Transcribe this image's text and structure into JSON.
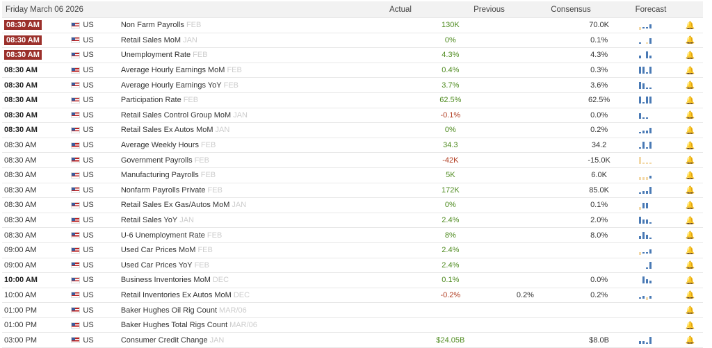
{
  "header": {
    "date": "Friday March 06 2026",
    "actual": "Actual",
    "previous": "Previous",
    "consensus": "Consensus",
    "forecast": "Forecast"
  },
  "colors": {
    "badge": "#9b302b",
    "positive": "#4d8a1e",
    "negative": "#b03a1e",
    "spark_up": "#4a7ab5",
    "spark_down": "#f3d9a8"
  },
  "rows": [
    {
      "time": "08:30 AM",
      "style": "badge",
      "country": "US",
      "event": "Non Farm Payrolls",
      "period": "FEB",
      "actual": "",
      "previous": "130K",
      "sign": "pos",
      "consensus": "",
      "forecast": "70.0K",
      "spark": [
        -2,
        1,
        1,
        3
      ]
    },
    {
      "time": "08:30 AM",
      "style": "badge",
      "country": "US",
      "event": "Retail Sales MoM",
      "period": "JAN",
      "actual": "",
      "previous": "0%",
      "sign": "pos",
      "consensus": "",
      "forecast": "0.1%",
      "spark": [
        1,
        0,
        -1,
        4
      ]
    },
    {
      "time": "08:30 AM",
      "style": "badge",
      "country": "US",
      "event": "Unemployment Rate",
      "period": "FEB",
      "actual": "",
      "previous": "4.3%",
      "sign": "pos",
      "consensus": "",
      "forecast": "4.3%",
      "spark": [
        2,
        0,
        5,
        2
      ]
    },
    {
      "time": "08:30 AM",
      "style": "bold",
      "country": "US",
      "event": "Average Hourly Earnings MoM",
      "period": "FEB",
      "actual": "",
      "previous": "0.4%",
      "sign": "pos",
      "consensus": "",
      "forecast": "0.3%",
      "spark": [
        5,
        5,
        1,
        5
      ]
    },
    {
      "time": "08:30 AM",
      "style": "bold",
      "country": "US",
      "event": "Average Hourly Earnings YoY",
      "period": "FEB",
      "actual": "",
      "previous": "3.7%",
      "sign": "pos",
      "consensus": "",
      "forecast": "3.6%",
      "spark": [
        5,
        4,
        1,
        1
      ]
    },
    {
      "time": "08:30 AM",
      "style": "bold",
      "country": "US",
      "event": "Participation Rate",
      "period": "FEB",
      "actual": "",
      "previous": "62.5%",
      "sign": "pos",
      "consensus": "",
      "forecast": "62.5%",
      "spark": [
        5,
        1,
        5,
        5
      ]
    },
    {
      "time": "08:30 AM",
      "style": "bold",
      "country": "US",
      "event": "Retail Sales Control Group MoM",
      "period": "JAN",
      "actual": "",
      "previous": "-0.1%",
      "sign": "neg",
      "consensus": "",
      "forecast": "0.0%",
      "spark": [
        4,
        1,
        1,
        0
      ]
    },
    {
      "time": "08:30 AM",
      "style": "bold",
      "country": "US",
      "event": "Retail Sales Ex Autos MoM",
      "period": "JAN",
      "actual": "",
      "previous": "0%",
      "sign": "pos",
      "consensus": "",
      "forecast": "0.2%",
      "spark": [
        1,
        2,
        2,
        4
      ]
    },
    {
      "time": "08:30 AM",
      "style": "normal",
      "country": "US",
      "event": "Average Weekly Hours",
      "period": "FEB",
      "actual": "",
      "previous": "34.3",
      "sign": "pos",
      "consensus": "",
      "forecast": "34.2",
      "spark": [
        1,
        5,
        1,
        5
      ]
    },
    {
      "time": "08:30 AM",
      "style": "normal",
      "country": "US",
      "event": "Government Payrolls",
      "period": "FEB",
      "actual": "",
      "previous": "-42K",
      "sign": "neg",
      "consensus": "",
      "forecast": "-15.0K",
      "spark": [
        -5,
        -1,
        -1,
        -1
      ]
    },
    {
      "time": "08:30 AM",
      "style": "normal",
      "country": "US",
      "event": "Manufacturing Payrolls",
      "period": "FEB",
      "actual": "",
      "previous": "5K",
      "sign": "pos",
      "consensus": "",
      "forecast": "6.0K",
      "spark": [
        -2,
        -2,
        -2,
        2
      ]
    },
    {
      "time": "08:30 AM",
      "style": "normal",
      "country": "US",
      "event": "Nonfarm Payrolls Private",
      "period": "FEB",
      "actual": "",
      "previous": "172K",
      "sign": "pos",
      "consensus": "",
      "forecast": "85.0K",
      "spark": [
        1,
        2,
        2,
        5
      ]
    },
    {
      "time": "08:30 AM",
      "style": "normal",
      "country": "US",
      "event": "Retail Sales Ex Gas/Autos MoM",
      "period": "JAN",
      "actual": "",
      "previous": "0%",
      "sign": "pos",
      "consensus": "",
      "forecast": "0.1%",
      "spark": [
        -2,
        4,
        4,
        0
      ]
    },
    {
      "time": "08:30 AM",
      "style": "normal",
      "country": "US",
      "event": "Retail Sales YoY",
      "period": "JAN",
      "actual": "",
      "previous": "2.4%",
      "sign": "pos",
      "consensus": "",
      "forecast": "2.0%",
      "spark": [
        5,
        3,
        3,
        1
      ]
    },
    {
      "time": "08:30 AM",
      "style": "normal",
      "country": "US",
      "event": "U-6 Unemployment Rate",
      "period": "FEB",
      "actual": "",
      "previous": "8%",
      "sign": "pos",
      "consensus": "",
      "forecast": "8.0%",
      "spark": [
        2,
        5,
        3,
        1
      ]
    },
    {
      "time": "09:00 AM",
      "style": "normal",
      "country": "US",
      "event": "Used Car Prices MoM",
      "period": "FEB",
      "actual": "",
      "previous": "2.4%",
      "sign": "pos",
      "consensus": "",
      "forecast": "",
      "spark": [
        -2,
        1,
        1,
        3
      ]
    },
    {
      "time": "09:00 AM",
      "style": "normal",
      "country": "US",
      "event": "Used Car Prices YoY",
      "period": "FEB",
      "actual": "",
      "previous": "2.4%",
      "sign": "pos",
      "consensus": "",
      "forecast": "",
      "spark": [
        0,
        0,
        1,
        5
      ]
    },
    {
      "time": "10:00 AM",
      "style": "bold",
      "country": "US",
      "event": "Business Inventories MoM",
      "period": "DEC",
      "actual": "",
      "previous": "0.1%",
      "sign": "pos",
      "consensus": "",
      "forecast": "0.0%",
      "spark": [
        0,
        5,
        3,
        2
      ]
    },
    {
      "time": "10:00 AM",
      "style": "normal",
      "country": "US",
      "event": "Retail Inventories Ex Autos MoM",
      "period": "DEC",
      "actual": "",
      "previous": "-0.2%",
      "sign": "neg",
      "consensus": "0.2%",
      "forecast": "0.2%",
      "spark": [
        1,
        2,
        -2,
        2
      ]
    },
    {
      "time": "01:00 PM",
      "style": "normal",
      "country": "US",
      "event": "Baker Hughes Oil Rig Count",
      "period": "MAR/06",
      "actual": "",
      "previous": "",
      "sign": "pos",
      "consensus": "",
      "forecast": "",
      "spark": []
    },
    {
      "time": "01:00 PM",
      "style": "normal",
      "country": "US",
      "event": "Baker Hughes Total Rigs Count",
      "period": "MAR/06",
      "actual": "",
      "previous": "",
      "sign": "pos",
      "consensus": "",
      "forecast": "",
      "spark": []
    },
    {
      "time": "03:00 PM",
      "style": "normal",
      "country": "US",
      "event": "Consumer Credit Change",
      "period": "JAN",
      "actual": "",
      "previous": "$24.05B",
      "sign": "pos",
      "consensus": "",
      "forecast": "$8.0B",
      "spark": [
        2,
        2,
        1,
        5
      ]
    }
  ]
}
